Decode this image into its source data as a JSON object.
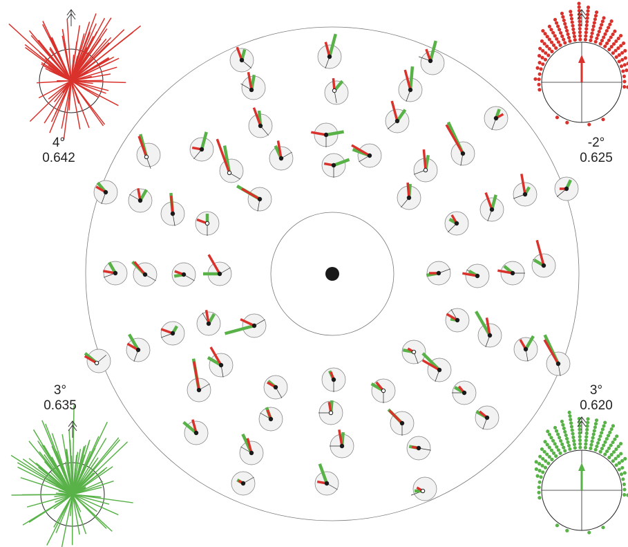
{
  "colors": {
    "red": "#d9312b",
    "green": "#58b248",
    "outline": "#555555",
    "cell_fill": "#f2f2f2",
    "dot": "#1a1a1a"
  },
  "legends": {
    "top_left": {
      "angle": "4°",
      "value": "0.642",
      "style": "lines",
      "color": "red"
    },
    "top_right": {
      "angle": "-2°",
      "value": "0.625",
      "style": "dots",
      "color": "red"
    },
    "bottom_left": {
      "angle": "3°",
      "value": "0.635",
      "style": "lines",
      "color": "green"
    },
    "bottom_right": {
      "angle": "3°",
      "value": "0.620",
      "style": "dots",
      "color": "green"
    }
  },
  "icons": [
    "north-arrow-icon"
  ]
}
